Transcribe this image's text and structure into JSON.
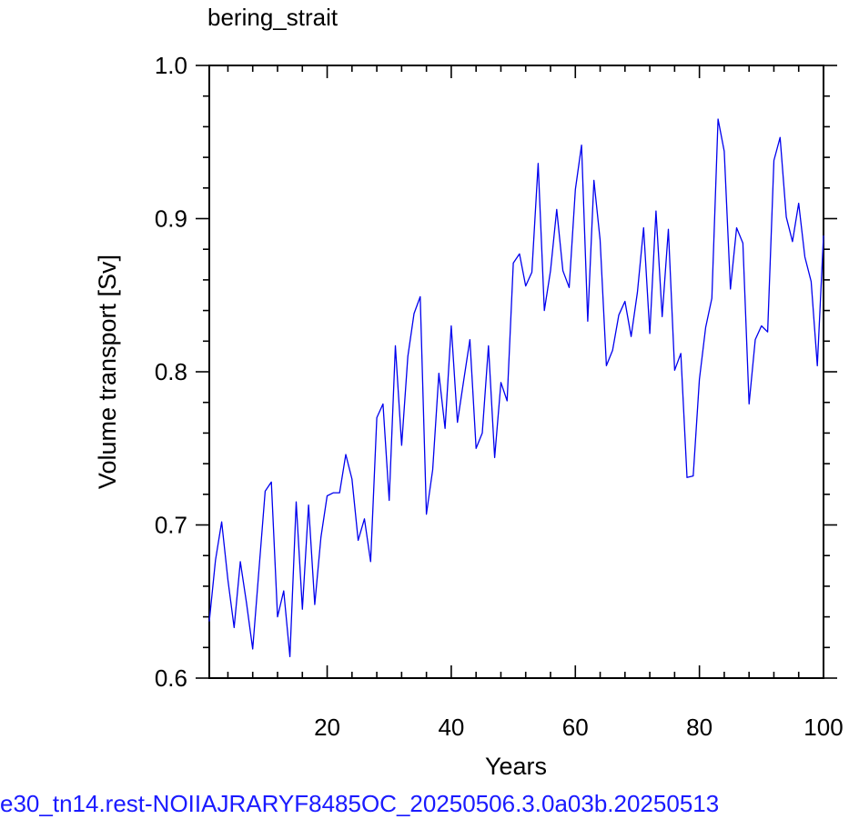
{
  "chart_data": {
    "type": "line",
    "title": "bering_strait",
    "xlabel": "Years",
    "ylabel": "Volume transport [Sv]",
    "xlim": [
      1,
      100
    ],
    "ylim": [
      0.6,
      1.0
    ],
    "xticks": [
      20,
      40,
      60,
      80,
      100
    ],
    "yticks": [
      0.6,
      0.7,
      0.8,
      0.9,
      1.0
    ],
    "ytick_labels": [
      "0.6",
      "0.7",
      "0.8",
      "0.9",
      "1.0"
    ],
    "grid": false,
    "legend": "none",
    "line_color": "#0000ee",
    "series": [
      {
        "x": [
          1,
          2,
          3,
          4,
          5,
          6,
          7,
          8,
          9,
          10,
          11,
          12,
          13,
          14,
          15,
          16,
          17,
          18,
          19,
          20,
          21,
          22,
          23,
          24,
          25,
          26,
          27,
          28,
          29,
          30,
          31,
          32,
          33,
          34,
          35,
          36,
          37,
          38,
          39,
          40,
          41,
          42,
          43,
          44,
          45,
          46,
          47,
          48,
          49,
          50,
          51,
          52,
          53,
          54,
          55,
          56,
          57,
          58,
          59,
          60,
          61,
          62,
          63,
          64,
          65,
          66,
          67,
          68,
          69,
          70,
          71,
          72,
          73,
          74,
          75,
          76,
          77,
          78,
          79,
          80,
          81,
          82,
          83,
          84,
          85,
          86,
          87,
          88,
          89,
          90,
          91,
          92,
          93,
          94,
          95,
          96,
          97,
          98,
          99,
          100
        ],
        "values": [
          0.637,
          0.677,
          0.702,
          0.664,
          0.633,
          0.676,
          0.649,
          0.619,
          0.67,
          0.722,
          0.728,
          0.64,
          0.657,
          0.614,
          0.715,
          0.645,
          0.713,
          0.648,
          0.692,
          0.719,
          0.721,
          0.721,
          0.746,
          0.73,
          0.69,
          0.704,
          0.676,
          0.77,
          0.779,
          0.716,
          0.817,
          0.752,
          0.81,
          0.838,
          0.849,
          0.707,
          0.736,
          0.799,
          0.763,
          0.83,
          0.767,
          0.794,
          0.821,
          0.75,
          0.76,
          0.817,
          0.744,
          0.793,
          0.781,
          0.871,
          0.877,
          0.856,
          0.865,
          0.936,
          0.84,
          0.866,
          0.906,
          0.866,
          0.855,
          0.919,
          0.948,
          0.833,
          0.925,
          0.886,
          0.804,
          0.814,
          0.837,
          0.846,
          0.823,
          0.852,
          0.894,
          0.825,
          0.905,
          0.836,
          0.893,
          0.801,
          0.812,
          0.731,
          0.732,
          0.795,
          0.829,
          0.848,
          0.965,
          0.944,
          0.854,
          0.894,
          0.884,
          0.779,
          0.821,
          0.83,
          0.826,
          0.938,
          0.953,
          0.901,
          0.885,
          0.91,
          0.875,
          0.859,
          0.804,
          0.889
        ]
      }
    ]
  },
  "caption": "e30_tn14.rest-NOIIAJRARYF8485OC_20250506.3.0a03b.20250513"
}
